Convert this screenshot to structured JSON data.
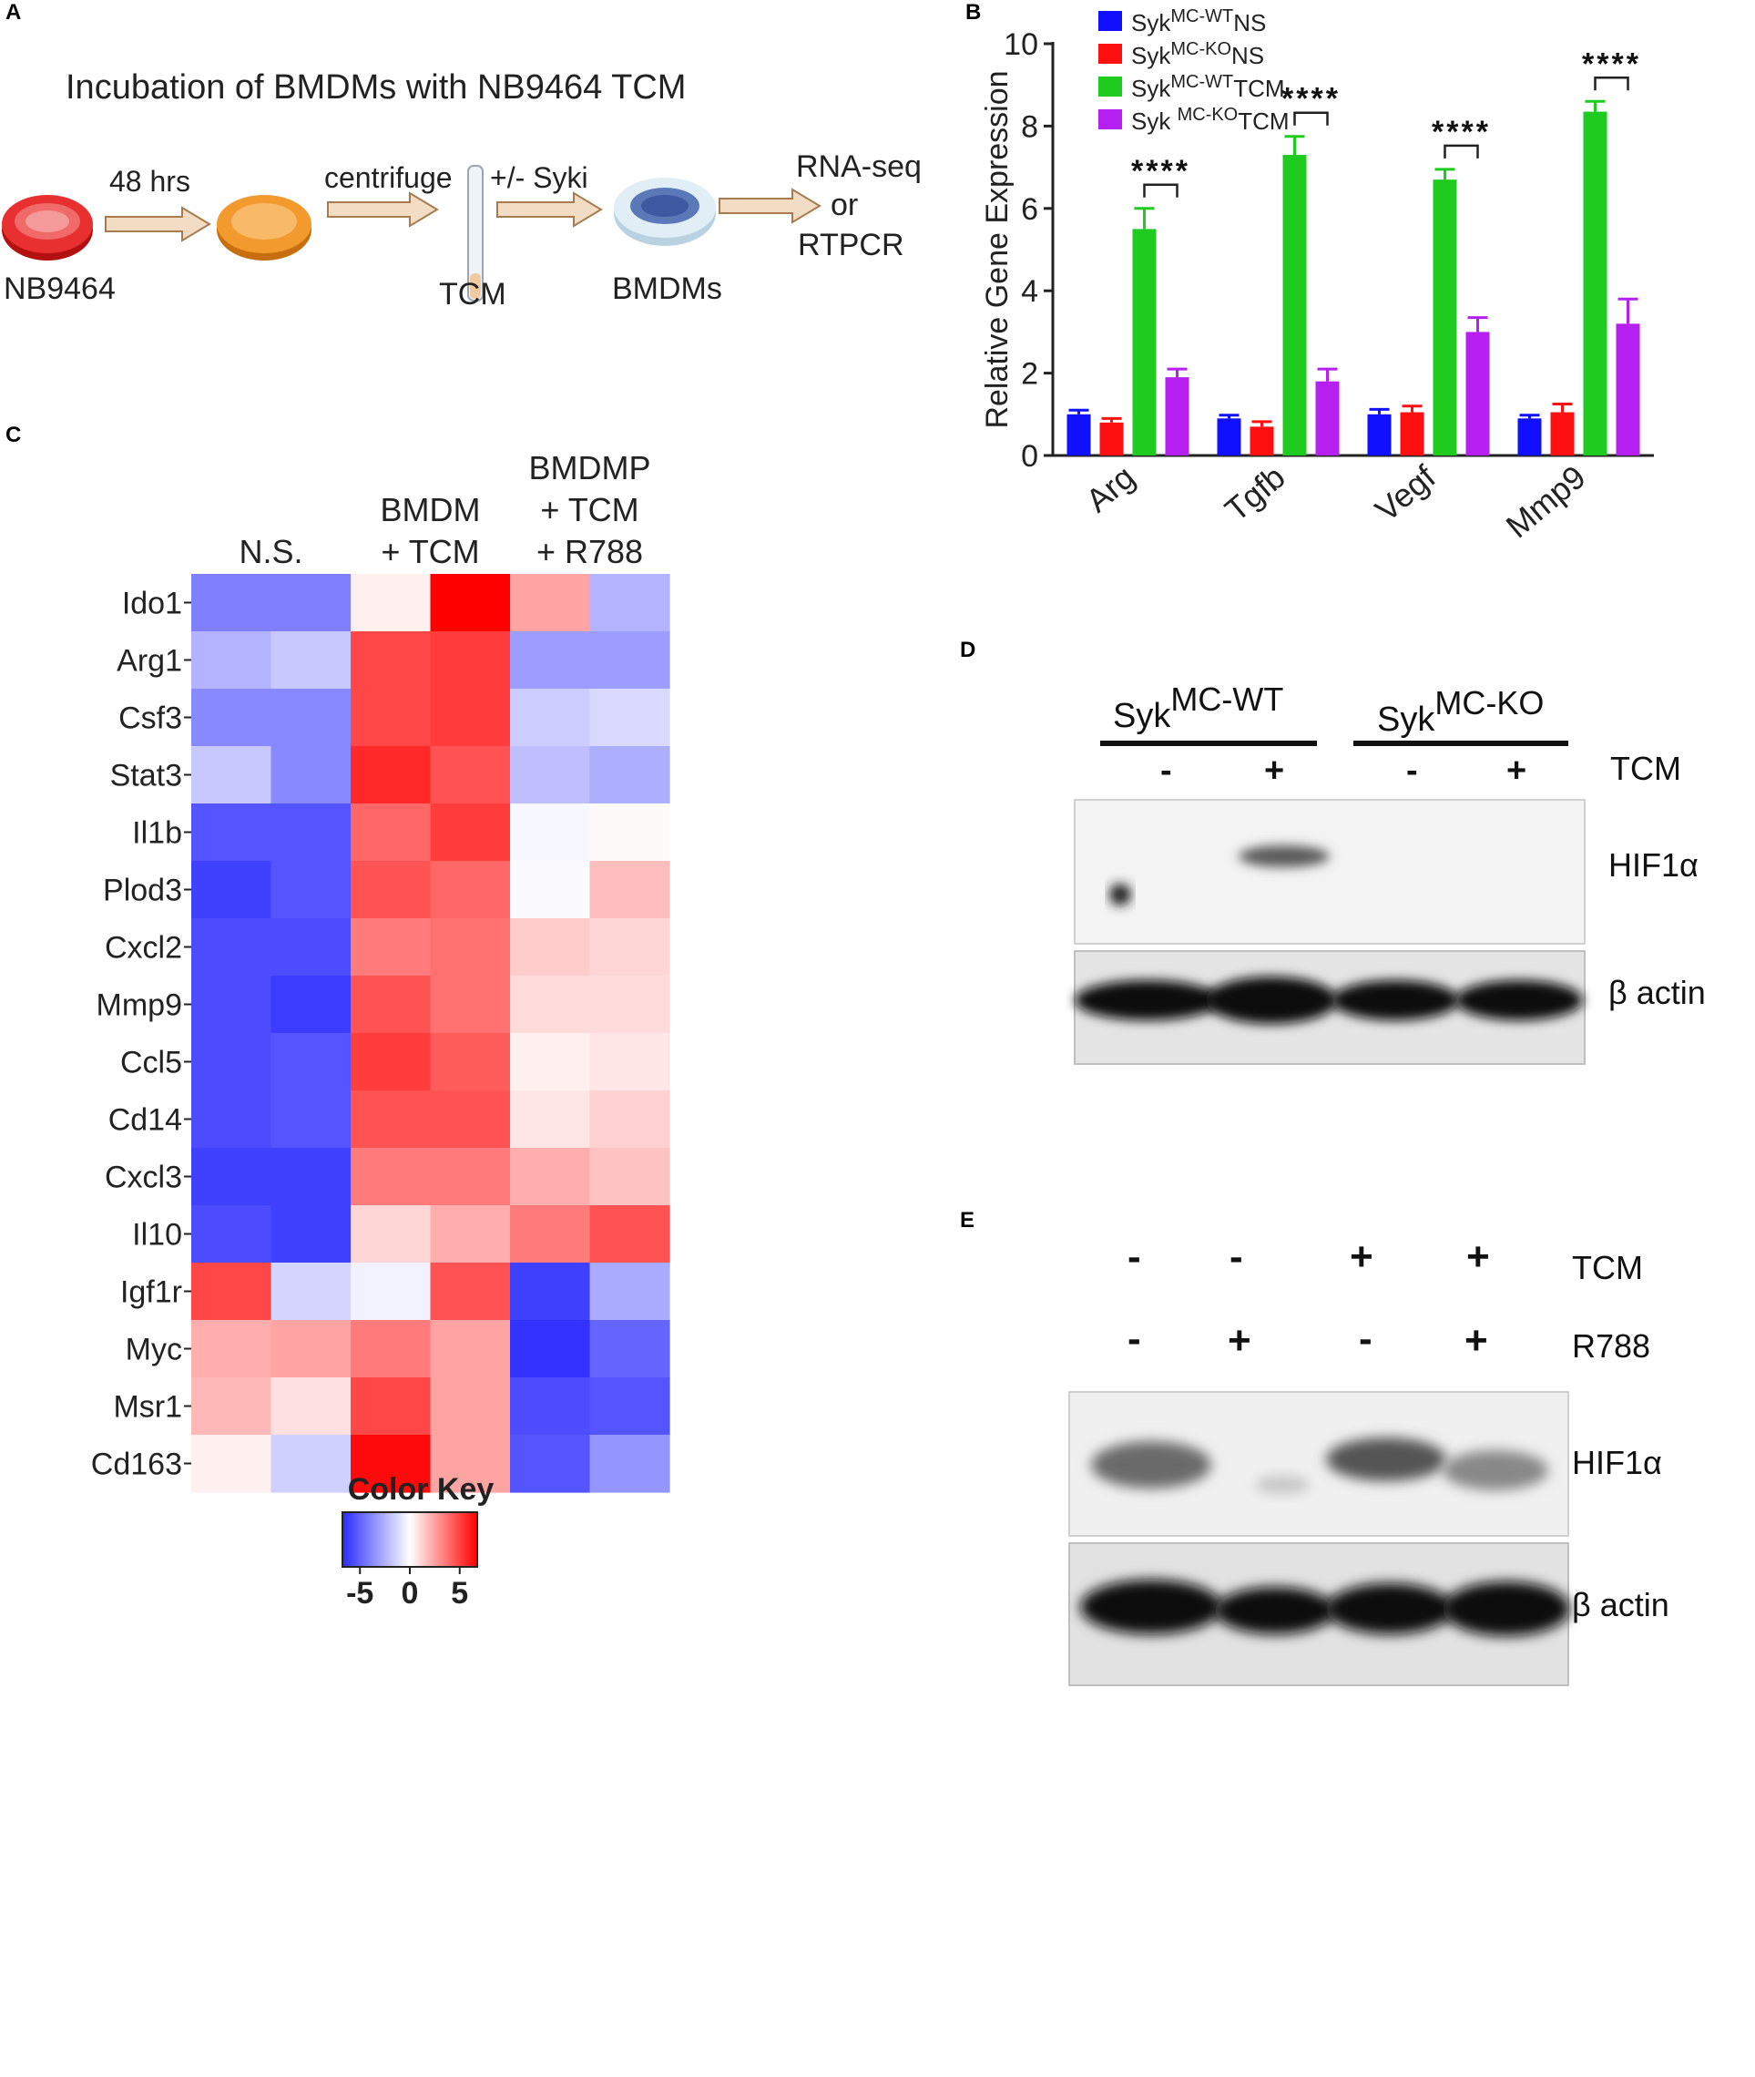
{
  "panels": {
    "A": {
      "label": "A",
      "title": "Incubation of BMDMs with NB9464 TCM",
      "steps": {
        "culture": "NB9464",
        "incubation": "48 hrs",
        "centrifuge": "centrifuge",
        "tcm": "TCM",
        "syki": "+/- Syki",
        "bmdms": "BMDMs",
        "readout_1": "RNA-seq",
        "readout_2": "or",
        "readout_3": "RTPCR"
      }
    },
    "B": {
      "label": "B"
    },
    "C": {
      "label": "C",
      "col_groups": [
        {
          "lines": [
            "N.S."
          ]
        },
        {
          "lines": [
            "BMDM",
            "+ TCM"
          ]
        },
        {
          "lines": [
            "BMDMP",
            "+ TCM",
            "+ R788"
          ]
        }
      ],
      "color_key": {
        "title": "Color Key",
        "ticks": [
          "-5",
          "0",
          "5"
        ],
        "low_color": "#2b2bff",
        "mid_color": "#ffffff",
        "high_color": "#ff0000"
      }
    },
    "D": {
      "label": "D",
      "groups": [
        {
          "base": "Syk",
          "sup": "MC-WT"
        },
        {
          "base": "Syk",
          "sup": "MC-KO"
        }
      ],
      "signs": [
        "-",
        "+",
        "-",
        "+"
      ],
      "row_label": "TCM",
      "bands": [
        "HIF1α",
        "β actin"
      ]
    },
    "E": {
      "label": "E",
      "tcm_signs": [
        "-",
        "-",
        "+",
        "+"
      ],
      "r788_signs": [
        "-",
        "+",
        "-",
        "+"
      ],
      "row_labels": [
        "TCM",
        "R788"
      ],
      "bands": [
        "HIF1α",
        "β actin"
      ]
    }
  },
  "chart_data": [
    {
      "type": "bar",
      "ylabel": "Relative Gene Expression",
      "ylim": [
        0,
        10
      ],
      "yticks": [
        "0",
        "2",
        "4",
        "6",
        "8",
        "10"
      ],
      "categories": [
        "Arg",
        "Tgfb",
        "Vegf",
        "Mmp9"
      ],
      "series": [
        {
          "name_base": "Syk",
          "name_sup": "MC-WT",
          "name_tail": "NS",
          "color": "#1010ff",
          "values": [
            1.0,
            0.9,
            1.0,
            0.9
          ],
          "errors": [
            0.1,
            0.08,
            0.12,
            0.08
          ]
        },
        {
          "name_base": "Syk",
          "name_sup": "MC-KO",
          "name_tail": "NS",
          "color": "#ff1010",
          "values": [
            0.8,
            0.7,
            1.05,
            1.05
          ],
          "errors": [
            0.1,
            0.12,
            0.15,
            0.2
          ]
        },
        {
          "name_base": "Syk",
          "name_sup": "MC-WT",
          "name_tail": "TCM",
          "color": "#1ecb1e",
          "values": [
            5.5,
            7.3,
            6.7,
            8.35
          ],
          "errors": [
            0.5,
            0.45,
            0.25,
            0.25
          ]
        },
        {
          "name_base": "Syk ",
          "name_sup": "MC-KO",
          "name_tail": "TCM",
          "color": "#b520f0",
          "values": [
            1.9,
            1.8,
            3.0,
            3.2
          ],
          "errors": [
            0.2,
            0.3,
            0.35,
            0.6
          ]
        }
      ],
      "significance": [
        {
          "category": "Arg",
          "label": "****"
        },
        {
          "category": "Tgfb",
          "label": "****"
        },
        {
          "category": "Vegf",
          "label": "****"
        },
        {
          "category": "Mmp9",
          "label": "****"
        }
      ],
      "legend_position": "top-left"
    },
    {
      "type": "heatmap",
      "rows": [
        "Ido1",
        "Arg1",
        "Csf3",
        "Stat3",
        "Il1b",
        "Plod3",
        "Cxcl2",
        "Mmp9",
        "Ccl5",
        "Cd14",
        "Cxcl3",
        "Il10",
        "Igf1r",
        "Myc",
        "Msr1",
        "Cd163"
      ],
      "zlim": [
        -5,
        5
      ],
      "values": [
        [
          -3,
          -3,
          0.3,
          5,
          1.8,
          -1.8
        ],
        [
          -1.8,
          -1.3,
          3.6,
          3.8,
          -2.3,
          -2.3
        ],
        [
          -2.8,
          -2.8,
          3.6,
          3.8,
          -1.2,
          -0.9
        ],
        [
          -1.3,
          -2.8,
          4.2,
          3.4,
          -1.5,
          -1.9
        ],
        [
          -4,
          -4,
          3.0,
          3.8,
          -0.2,
          0.1
        ],
        [
          -4.5,
          -4,
          3.4,
          3.0,
          -0.1,
          1.3
        ],
        [
          -4.2,
          -4.2,
          2.6,
          2.8,
          1.0,
          0.8
        ],
        [
          -4.2,
          -4.6,
          3.4,
          2.8,
          0.7,
          0.7
        ],
        [
          -4.2,
          -4,
          3.8,
          3.2,
          0.3,
          0.5
        ],
        [
          -4.2,
          -4,
          3.4,
          3.4,
          0.5,
          0.9
        ],
        [
          -4.5,
          -4.5,
          2.6,
          2.6,
          1.6,
          1.2
        ],
        [
          -4.2,
          -4.5,
          0.8,
          1.6,
          2.6,
          3.4
        ],
        [
          3.6,
          -1.0,
          -0.3,
          3.4,
          -4.5,
          -2.0
        ],
        [
          1.6,
          1.8,
          2.6,
          1.8,
          -4.8,
          -3.6
        ],
        [
          1.4,
          0.6,
          3.6,
          1.8,
          -4.2,
          -4.0
        ],
        [
          0.3,
          -1.1,
          4.8,
          1.8,
          -4.0,
          -2.5
        ]
      ]
    }
  ]
}
